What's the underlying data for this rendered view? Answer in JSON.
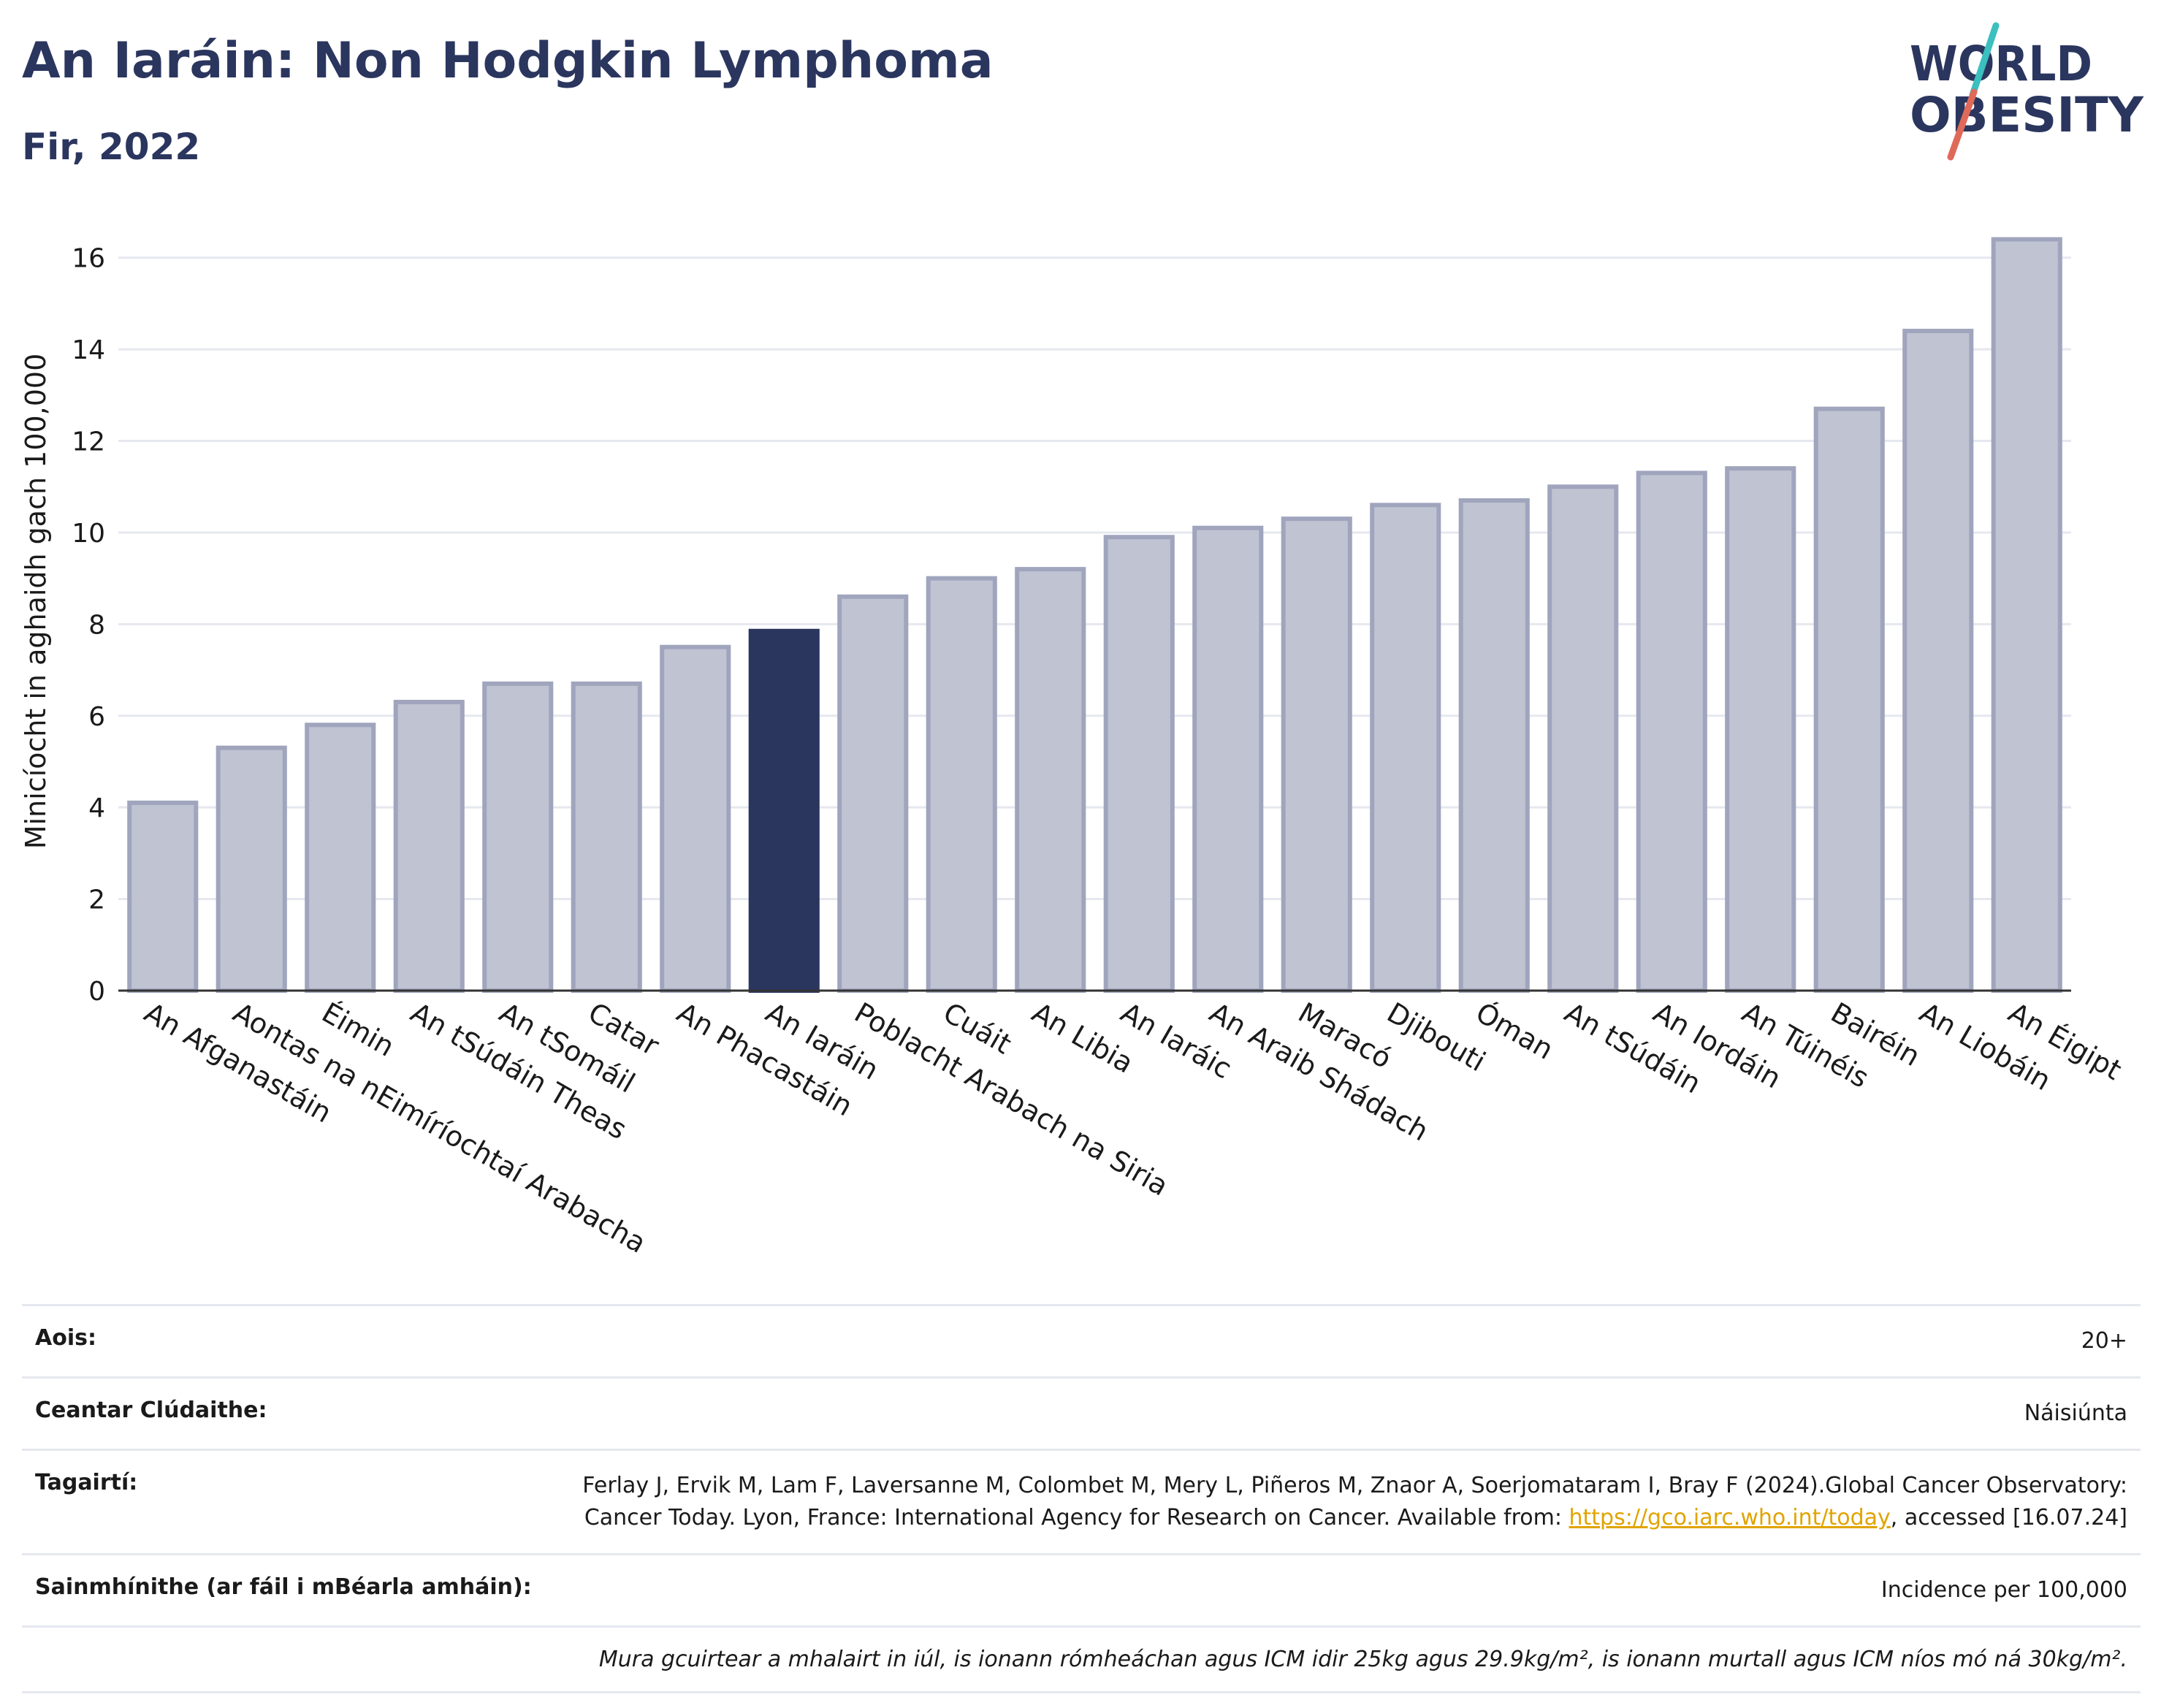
{
  "header": {
    "title": "An Iaráin: Non Hodgkin Lymphoma",
    "subtitle": "Fir, 2022"
  },
  "logo": {
    "line1": "WORLD",
    "line2": "OBESITY",
    "colors": {
      "text": "#2b365f",
      "slash_teal": "#3bbfbf",
      "slash_red": "#e06a5a"
    }
  },
  "colors": {
    "bar": "#c0c3d2",
    "bar_edge": "#a0a5bd",
    "highlight": "#2b365f",
    "grid": "#e6e8ef",
    "axis": "#333333"
  },
  "chart_data": {
    "type": "bar",
    "title": "",
    "xlabel": "",
    "ylabel": "Minicíocht in aghaidh gach 100,000",
    "ylim": [
      0,
      17
    ],
    "yticks": [
      0,
      2,
      4,
      6,
      8,
      10,
      12,
      14,
      16
    ],
    "grid": true,
    "highlight_category": "An Iaráin",
    "categories": [
      "An Afganastáin",
      "Aontas na nEimíríochtaí Arabacha",
      "Éimin",
      "An tSúdáin Theas",
      "An tSomáil",
      "Catar",
      "An Phacastáin",
      "An Iaráin",
      "Poblacht Arabach na Siria",
      "Cuáit",
      "An Libia",
      "An Iaráic",
      "An Araib Shádach",
      "Maracó",
      "Djibouti",
      "Óman",
      "An tSúdáin",
      "An Iordáin",
      "An Túinéis",
      "Bairéin",
      "An Liobáin",
      "An Éigipt"
    ],
    "values": [
      4.1,
      5.3,
      5.8,
      6.3,
      6.7,
      6.7,
      7.5,
      7.85,
      8.6,
      9.0,
      9.2,
      9.9,
      10.1,
      10.3,
      10.6,
      10.7,
      11.0,
      11.3,
      11.4,
      12.7,
      14.4,
      16.4
    ]
  },
  "meta": {
    "age_label": "Aois:",
    "age_value": "20+",
    "area_label": "Ceantar Clúdaithe:",
    "area_value": "Náisiúnta",
    "refs_label": "Tagairtí:",
    "refs_text_before": "Ferlay J, Ervik M, Lam F, Laversanne M, Colombet M, Mery L, Piñeros M, Znaor A, Soerjomataram I, Bray F (2024).Global Cancer Observatory: Cancer Today. Lyon, France: International Agency for Research on Cancer. Available from: ",
    "refs_link": "https://gco.iarc.who.int/today",
    "refs_text_after": ", accessed [16.07.24]",
    "defs_label": "Sainmhínithe (ar fáil i mBéarla amháin):",
    "defs_value": "Incidence per 100,000",
    "note": "Mura gcuirtear a mhalairt in iúl, is ionann rómheáchan agus ICM idir 25kg agus 29.9kg/m², is ionann murtall agus ICM níos mó ná 30kg/m²."
  }
}
